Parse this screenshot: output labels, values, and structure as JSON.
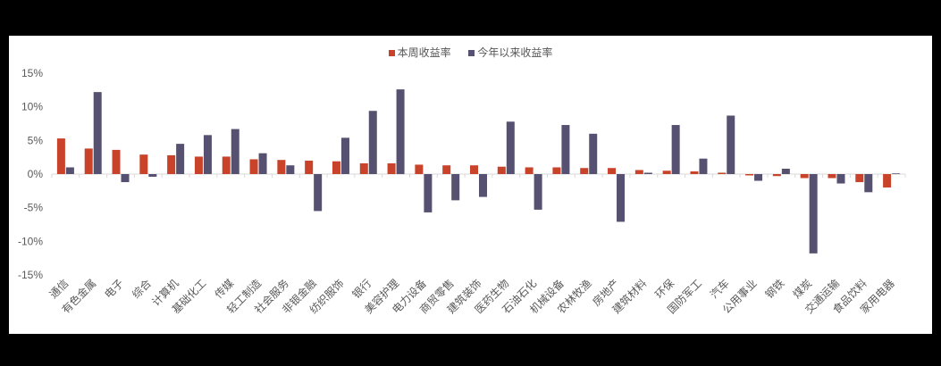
{
  "colors": {
    "weekly": "#C9432A",
    "ytd": "#565170",
    "axis": "#d9d9d9",
    "text": "#595959"
  },
  "legend": {
    "weekly_label": "本周收益率",
    "ytd_label": "今年以来收益率"
  },
  "chart_data": {
    "type": "bar",
    "title": "",
    "xlabel": "",
    "ylabel": "",
    "ylim": [
      -15,
      15
    ],
    "yticks": [
      "15%",
      "10%",
      "5%",
      "0%",
      "-5%",
      "-10%",
      "-15%"
    ],
    "legend_position": "top",
    "grid": false,
    "categories": [
      "通信",
      "有色金属",
      "电子",
      "综合",
      "计算机",
      "基础化工",
      "传媒",
      "轻工制造",
      "社会服务",
      "非银金融",
      "纺织服饰",
      "银行",
      "美容护理",
      "电力设备",
      "商贸零售",
      "建筑装饰",
      "医药生物",
      "石油石化",
      "机械设备",
      "农林牧渔",
      "房地产",
      "建筑材料",
      "环保",
      "国防军工",
      "汽车",
      "公用事业",
      "钢铁",
      "煤炭",
      "交通运输",
      "食品饮料",
      "家用电器"
    ],
    "series": [
      {
        "name": "本周收益率",
        "values": [
          5.3,
          3.8,
          3.6,
          2.9,
          2.8,
          2.6,
          2.6,
          2.2,
          2.1,
          2.0,
          1.9,
          1.6,
          1.6,
          1.4,
          1.3,
          1.3,
          1.1,
          1.0,
          1.0,
          0.9,
          0.9,
          0.6,
          0.5,
          0.4,
          0.2,
          -0.2,
          -0.3,
          -0.6,
          -0.6,
          -1.2,
          -2.0
        ]
      },
      {
        "name": "今年以来收益率",
        "values": [
          1.0,
          12.2,
          -1.2,
          -0.4,
          4.5,
          5.8,
          6.7,
          3.1,
          1.3,
          -5.5,
          5.4,
          9.4,
          12.6,
          -5.7,
          -3.9,
          -3.4,
          7.8,
          -5.3,
          7.3,
          6.0,
          -7.1,
          0.2,
          7.3,
          2.3,
          8.7,
          -1.0,
          0.8,
          -11.8,
          -1.4,
          -2.7,
          0.1
        ]
      }
    ]
  }
}
